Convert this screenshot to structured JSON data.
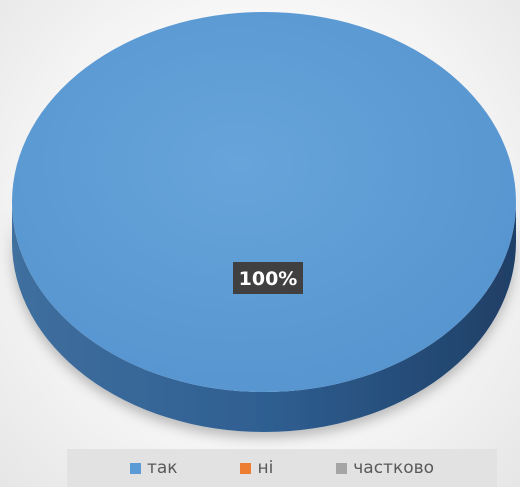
{
  "chart_data": {
    "type": "pie",
    "categories": [
      "так",
      "ні",
      "частково"
    ],
    "values": [
      100,
      0,
      0
    ],
    "data_labels": [
      "100%"
    ],
    "legend_position": "bottom",
    "three_d": true,
    "colors": [
      "#5b9bd5",
      "#ed7d31",
      "#a5a5a5"
    ]
  }
}
